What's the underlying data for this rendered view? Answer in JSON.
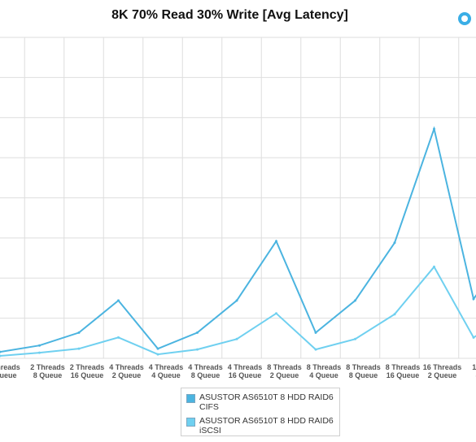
{
  "title": "8K 70% Read 30% Write [Avg Latency]",
  "menu_icon": "settings-ring-icon",
  "colors": {
    "grid": "#dedede",
    "series_cifs": "#4bb4e0",
    "series_iscsi": "#6fd0f0",
    "accent": "#3aaee6"
  },
  "chart_data": {
    "type": "line",
    "title": "8K 70% Read 30% Write [Avg Latency]",
    "xlabel": "",
    "ylabel": "",
    "grid": true,
    "legend_position": "bottom",
    "categories": [
      "2 Threads\n2 Queue",
      "2 Threads\n4 Queue",
      "2 Threads\n8 Queue",
      "2 Threads\n16 Queue",
      "4 Threads\n2 Queue",
      "4 Threads\n4 Queue",
      "4 Threads\n8 Queue",
      "4 Threads\n16 Queue",
      "8 Threads\n2 Queue",
      "8 Threads\n4 Queue",
      "8 Threads\n8 Queue",
      "8 Threads\n16 Queue",
      "16 Threads\n2 Queue",
      "16 Threads\n4 Queue"
    ],
    "category_labels": [
      "hreads\nueue",
      "2 Threads\n8 Queue",
      "2 Threads\n16 Queue",
      "4 Threads\n2 Queue",
      "4 Threads\n4 Queue",
      "4 Threads\n8 Queue",
      "4 Threads\n16 Queue",
      "8 Threads\n2 Queue",
      "8 Threads\n4 Queue",
      "8 Threads\n8 Queue",
      "8 Threads\n16 Queue",
      "16 Threads\n2 Queue",
      "16 Th\n4 Q"
    ],
    "ylim": [
      0,
      40
    ],
    "series": [
      {
        "name": "ASUSTOR AS6510T 8 HDD RAID6\nCIFS",
        "values": [
          0.8,
          1.6,
          3.2,
          7.2,
          1.2,
          3.2,
          7.2,
          14.6,
          3.2,
          7.2,
          14.4,
          28.6,
          7.4,
          14.2
        ]
      },
      {
        "name": "ASUSTOR AS6510T 8 HDD RAID6\niSCSI",
        "values": [
          0.3,
          0.7,
          1.2,
          2.6,
          0.5,
          1.1,
          2.4,
          5.6,
          1.1,
          2.4,
          5.5,
          11.4,
          2.6,
          5.6
        ]
      }
    ]
  }
}
